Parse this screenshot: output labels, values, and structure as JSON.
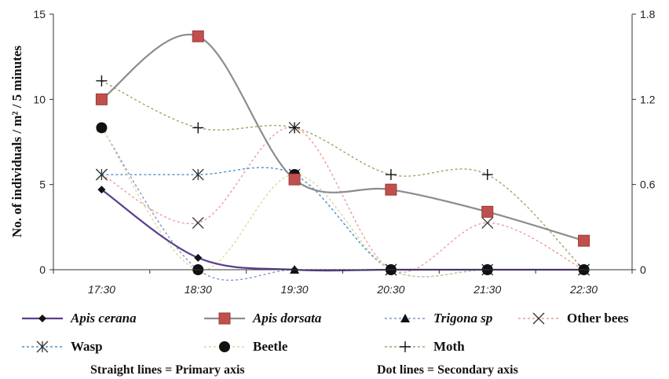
{
  "chart_data": {
    "type": "line",
    "title": "",
    "xlabel": "",
    "ylabel": "No. of individuals / m² / 5 minutes",
    "x": [
      "17:30",
      "18:30",
      "19:30",
      "20:30",
      "21:30",
      "22:30"
    ],
    "primary_axis": {
      "ylim": [
        0,
        15
      ],
      "ticks": [
        "0",
        "5",
        "10",
        "15"
      ]
    },
    "secondary_axis": {
      "ylim": [
        0,
        1.8
      ],
      "ticks": [
        "0",
        "0.6",
        "1.2",
        "1.8"
      ]
    },
    "grid": false,
    "series": [
      {
        "name": "Apis cerana",
        "axis": "primary",
        "style": "solid",
        "marker": "diamond",
        "color": "#5b3e8e",
        "values": [
          4.7,
          0.7,
          0,
          0,
          0,
          0
        ]
      },
      {
        "name": "Apis dorsata",
        "axis": "primary",
        "style": "solid",
        "marker": "square",
        "color": "#8c8c8c",
        "values": [
          10,
          13.7,
          5.3,
          4.7,
          3.4,
          1.7
        ]
      },
      {
        "name": "Trigona sp",
        "axis": "secondary",
        "style": "dotted",
        "marker": "triangle",
        "color": "#7f95d6",
        "values": [
          1.0,
          0,
          0,
          0,
          0,
          0
        ]
      },
      {
        "name": "Other bees",
        "axis": "secondary",
        "style": "dotted",
        "marker": "x",
        "color": "#ee9c9c",
        "values": [
          0.67,
          0.33,
          1.0,
          0,
          0.33,
          0
        ]
      },
      {
        "name": "Wasp",
        "axis": "secondary",
        "style": "dotted",
        "marker": "asterisk",
        "color": "#4a8fd0",
        "values": [
          0.67,
          0.67,
          0.67,
          0,
          0,
          0
        ]
      },
      {
        "name": "Beetle",
        "axis": "secondary",
        "style": "dotted",
        "marker": "circle",
        "color": "#d9d996",
        "values": [
          1.0,
          0,
          0.67,
          0,
          0,
          0
        ]
      },
      {
        "name": "Moth",
        "axis": "secondary",
        "style": "dotted",
        "marker": "plus",
        "color": "#a2a26a",
        "values": [
          1.33,
          1.0,
          1.0,
          0.67,
          0.67,
          0
        ]
      }
    ],
    "notes": [
      "Straight lines = Primary axis",
      "Dot lines = Secondary axis"
    ],
    "legend_position": "bottom"
  }
}
